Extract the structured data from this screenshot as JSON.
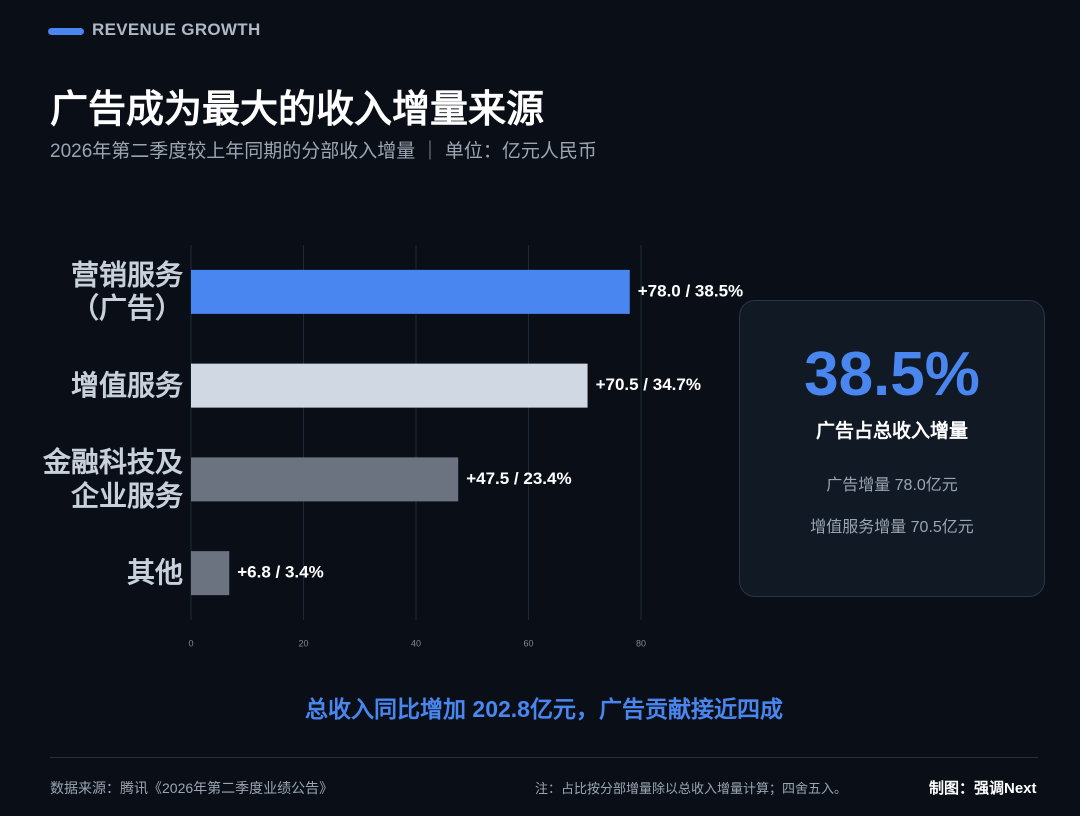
{
  "header": {
    "kicker": "REVENUE GROWTH",
    "title": "广告成为最大的收入增量来源",
    "subtitle": "2026年第二季度较上年同期的分部收入增量 ｜ 单位：亿元人民币"
  },
  "chart_data": {
    "type": "bar",
    "orientation": "horizontal",
    "categories": [
      "营销服务（广告）",
      "增值服务",
      "金融科技及企业服务",
      "其他"
    ],
    "values": [
      78.0,
      70.5,
      47.5,
      6.8
    ],
    "value_labels": [
      "+78.0 / 38.5%",
      "+70.5 / 34.7%",
      "+47.5 / 23.4%",
      "+6.8 / 3.4%"
    ],
    "colors": [
      "#4a86f0",
      "#cfd8e3",
      "#6b7280",
      "#6b7280"
    ],
    "xlim": [
      0,
      80
    ],
    "xticks": [
      0,
      20,
      40,
      60,
      80
    ],
    "grid": true
  },
  "callout": {
    "value": "38.5%",
    "label": "广告占总收入增量",
    "lines": [
      "广告增量 78.0亿元",
      "增值服务增量 70.5亿元"
    ]
  },
  "summary": "总收入同比增加 202.8亿元，广告贡献接近四成",
  "footer": {
    "source": "数据来源：腾讯《2026年第二季度业绩公告》",
    "note": "注：占比按分部增量除以总收入增量计算；四舍五入。",
    "credit": "制图：强调Next"
  }
}
